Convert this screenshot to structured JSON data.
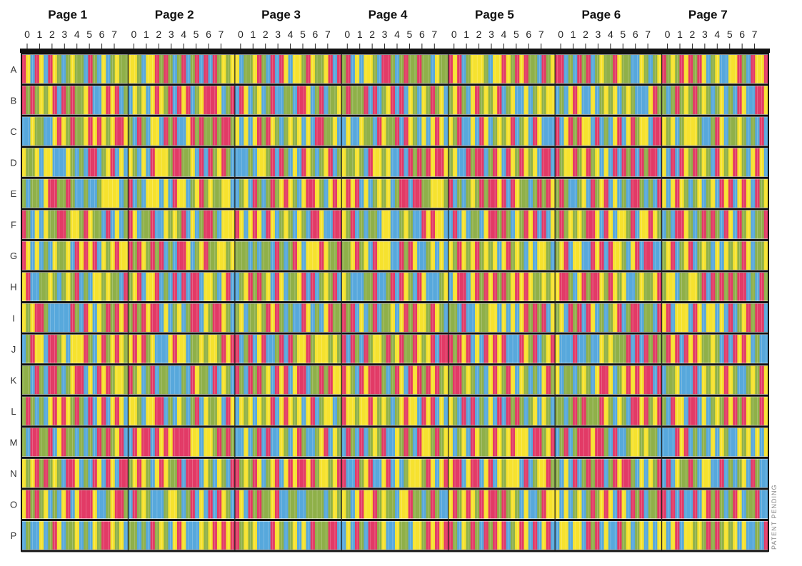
{
  "pages": [
    {
      "label": "Page 1"
    },
    {
      "label": "Page 2"
    },
    {
      "label": "Page 3"
    },
    {
      "label": "Page 4"
    },
    {
      "label": "Page 5"
    },
    {
      "label": "Page 6"
    },
    {
      "label": "Page 7"
    }
  ],
  "column_digits": [
    "0",
    "1",
    "2",
    "3",
    "4",
    "5",
    "6",
    "7"
  ],
  "rows": [
    "A",
    "B",
    "C",
    "D",
    "E",
    "F",
    "G",
    "H",
    "I",
    "J",
    "K",
    "L",
    "M",
    "N",
    "O",
    "P"
  ],
  "palette": {
    "red": "#e23a66",
    "yellow": "#f6e22e",
    "blue": "#57a8dc",
    "green": "#8fb049"
  },
  "footer_note": "PATENT PENDING"
}
